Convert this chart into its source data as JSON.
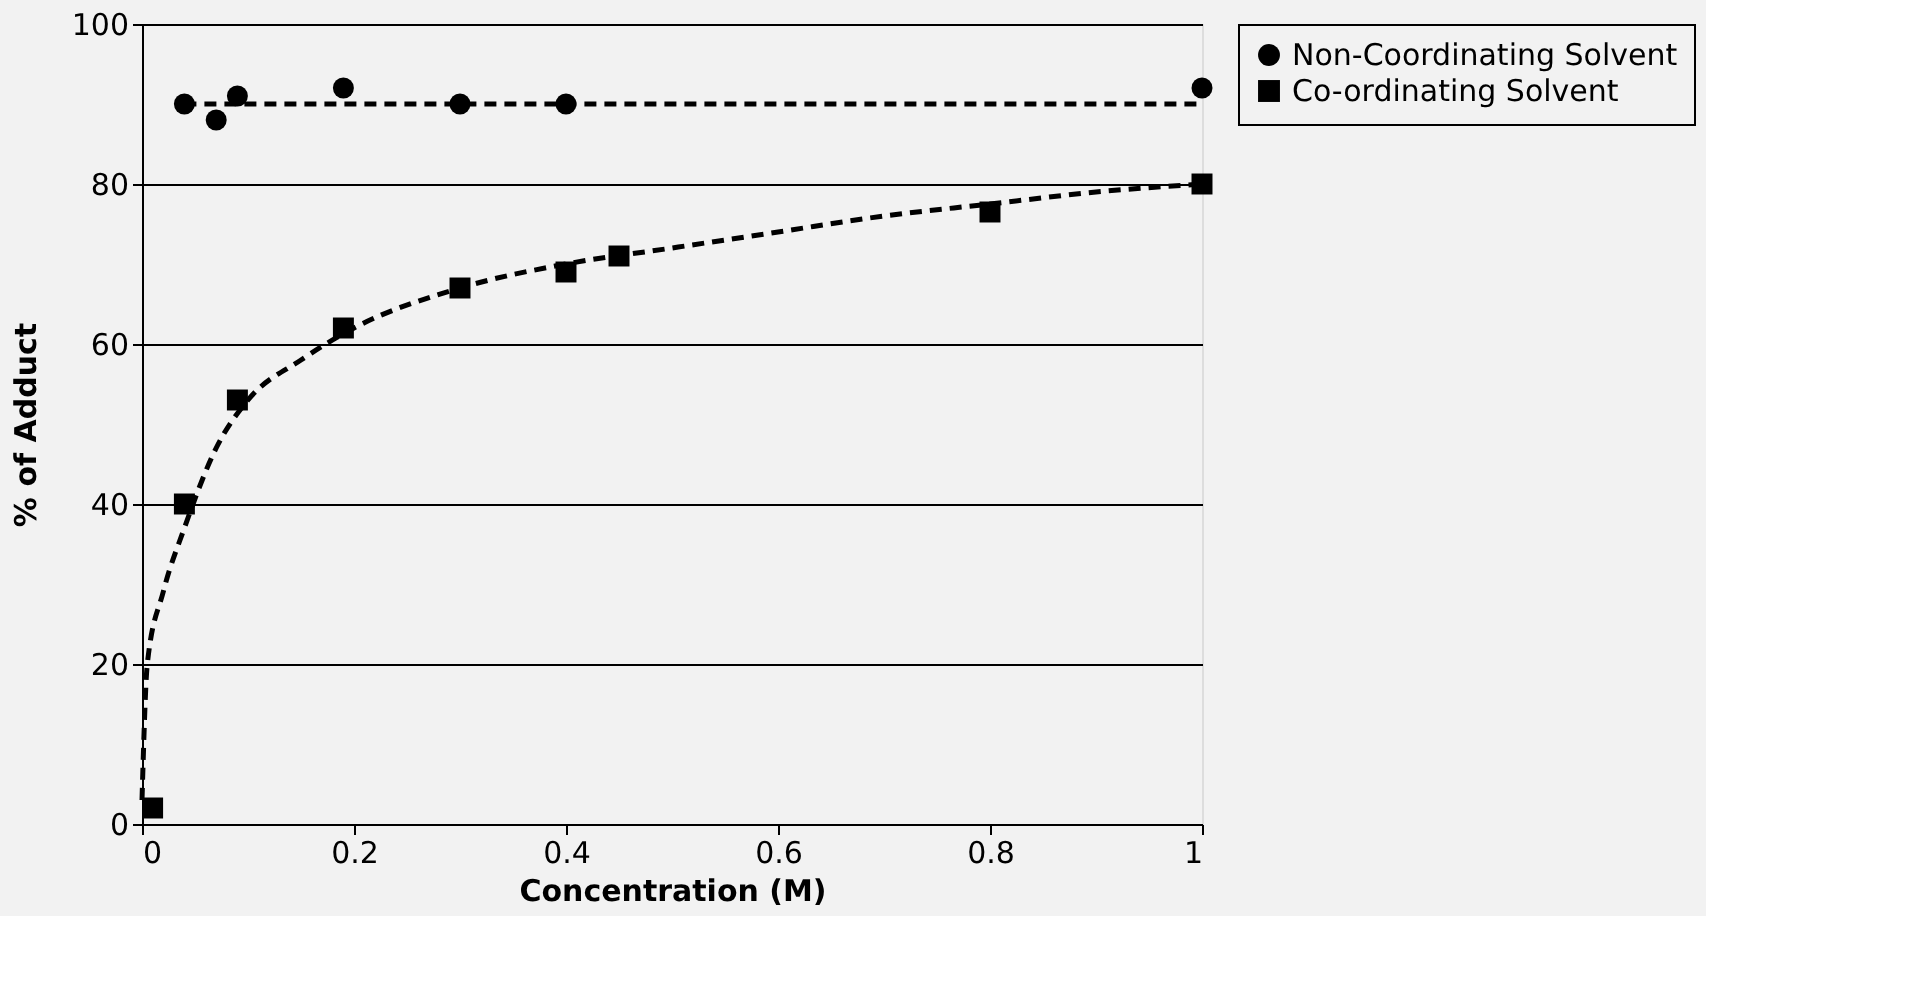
{
  "chart_data": {
    "type": "scatter",
    "xlabel": "Concentration  (M)",
    "ylabel": "%  of  Adduct",
    "xlim": [
      0,
      1
    ],
    "xticks": [
      0,
      0.2,
      0.4,
      0.6,
      0.8,
      1
    ],
    "ylim": [
      0,
      100
    ],
    "yticks": [
      0,
      20,
      40,
      60,
      80,
      100
    ],
    "grid": "y",
    "legend": "right",
    "series": [
      {
        "name": "Non-Coordinating Solvent",
        "color": "#000000",
        "marker": "circle",
        "x": [
          0.04,
          0.07,
          0.09,
          0.19,
          0.3,
          0.4,
          1
        ],
        "values": [
          90,
          88,
          91,
          92,
          90,
          90,
          92
        ]
      },
      {
        "name": "Co-ordinating Solvent",
        "color": "#000000",
        "marker": "square",
        "x": [
          0.01,
          0.04,
          0.09,
          0.19,
          0.3,
          0.4,
          0.45,
          0.8,
          1
        ],
        "values": [
          2,
          40,
          53,
          62,
          67,
          69,
          71,
          76.5,
          80
        ]
      },
      {
        "type": "line",
        "color": "#000000",
        "line_style": "dashed",
        "x": [
          0.04,
          1
        ],
        "values": [
          90,
          90
        ]
      },
      {
        "type": "line",
        "color": "#000000",
        "line_style": "dashed",
        "x": [
          0,
          0.005,
          0.02,
          0.04,
          0.07,
          0.1,
          0.15,
          0.2,
          0.3,
          0.4,
          0.5,
          0.6,
          0.7,
          0.8,
          0.9,
          1
        ],
        "values": [
          3,
          20,
          29,
          37,
          47,
          53,
          58,
          62,
          67,
          70,
          72,
          74,
          76,
          77.5,
          79,
          80
        ]
      }
    ]
  }
}
